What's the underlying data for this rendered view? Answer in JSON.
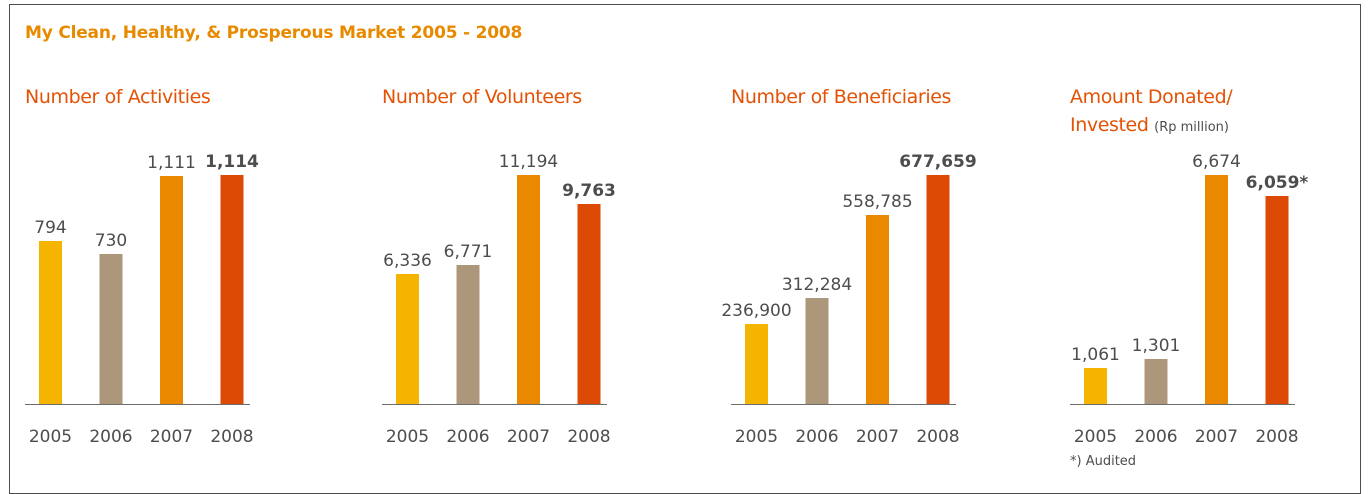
{
  "title": "My Clean, Healthy, & Prosperous Market 2005 - 2008",
  "footnote": "*) Audited",
  "colors": {
    "title": "#e88a00",
    "panel_title": "#e35205",
    "text": "#4d4d4d",
    "axis": "#6d6d6d",
    "bars": [
      "#f5b400",
      "#ad977b",
      "#ea8900",
      "#dc4a05"
    ]
  },
  "chart_data": [
    {
      "type": "bar",
      "title": "Number of Activities",
      "unit": "",
      "categories": [
        "2005",
        "2006",
        "2007",
        "2008"
      ],
      "values": [
        794,
        730,
        1111,
        1114
      ],
      "labels": [
        "794",
        "730",
        "1,111",
        "1,114"
      ],
      "highlight": [
        false,
        false,
        false,
        true
      ],
      "ylim": [
        0,
        1114
      ]
    },
    {
      "type": "bar",
      "title": "Number of Volunteers",
      "unit": "",
      "categories": [
        "2005",
        "2006",
        "2007",
        "2008"
      ],
      "values": [
        6336,
        6771,
        11194,
        9763
      ],
      "labels": [
        "6,336",
        "6,771",
        "11,194",
        "9,763"
      ],
      "highlight": [
        false,
        false,
        false,
        true
      ],
      "ylim": [
        0,
        11194
      ]
    },
    {
      "type": "bar",
      "title": "Number of Beneficiaries",
      "unit": "",
      "categories": [
        "2005",
        "2006",
        "2007",
        "2008"
      ],
      "values": [
        236900,
        312284,
        558785,
        677659
      ],
      "labels": [
        "236,900",
        "312,284",
        "558,785",
        "677,659"
      ],
      "highlight": [
        false,
        false,
        false,
        true
      ],
      "ylim": [
        0,
        677659
      ]
    },
    {
      "type": "bar",
      "title": "Amount Donated/ Invested",
      "unit": "(Rp million)",
      "categories": [
        "2005",
        "2006",
        "2007",
        "2008"
      ],
      "values": [
        1061,
        1301,
        6674,
        6059
      ],
      "labels": [
        "1,061",
        "1,301",
        "6,674",
        "6,059*"
      ],
      "highlight": [
        false,
        false,
        false,
        true
      ],
      "ylim": [
        0,
        6674
      ]
    }
  ]
}
